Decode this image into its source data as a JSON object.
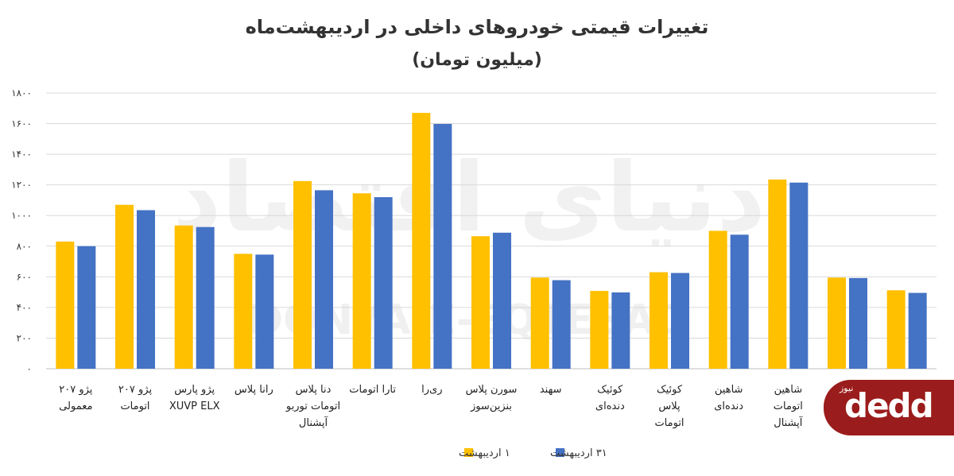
{
  "chart_data": {
    "type": "bar",
    "title": "تغییرات قیمتی خودروهای داخلی در اردیبهشت‌ماه",
    "subtitle": "(میلیون تومان)",
    "categories": [
      "پژو ۲۰۷\nمعمولی",
      "پژو ۲۰۷\nاتومات",
      "پژو پارس\nXUVP ELX",
      "رانا پلاس",
      "دنا پلاس\nاتومات توربو\nآپشنال",
      "تارا اتومات",
      "ری‌را",
      "سورن پلاس\nبنزین‌سوز",
      "سهند",
      "کوئیک\nدنده‌ای",
      "کوئیک\nپلاس\nاتومات",
      "شاهین\nدنده‌ای",
      "شاهین\nاتومات\nآپشنال",
      "",
      ""
    ],
    "series": [
      {
        "name": "۱ اردیبهشت",
        "color": "#FFC000",
        "values": [
          830,
          1070,
          935,
          750,
          1225,
          1145,
          1670,
          865,
          595,
          508,
          630,
          900,
          1235,
          595,
          512
        ]
      },
      {
        "name": "۳۱ اردیبهشت",
        "color": "#4472C4",
        "values": [
          800,
          1035,
          925,
          745,
          1165,
          1120,
          1598,
          888,
          578,
          498,
          625,
          875,
          1215,
          592,
          495
        ]
      }
    ],
    "yticks": [
      "۰",
      "۲۰۰",
      "۴۰۰",
      "۶۰۰",
      "۸۰۰",
      "۱۰۰۰",
      "۱۲۰۰",
      "۱۴۰۰",
      "۱۶۰۰",
      "۱۸۰۰"
    ],
    "ylim": [
      0,
      1800
    ],
    "grid": true,
    "legend_position": "bottom-center",
    "watermark": "DONYA-E-EQTESAD",
    "watermark_fa": "دنیای اقتصاد"
  },
  "logo": {
    "small_text": "نیوز",
    "main_text": "dedd"
  }
}
